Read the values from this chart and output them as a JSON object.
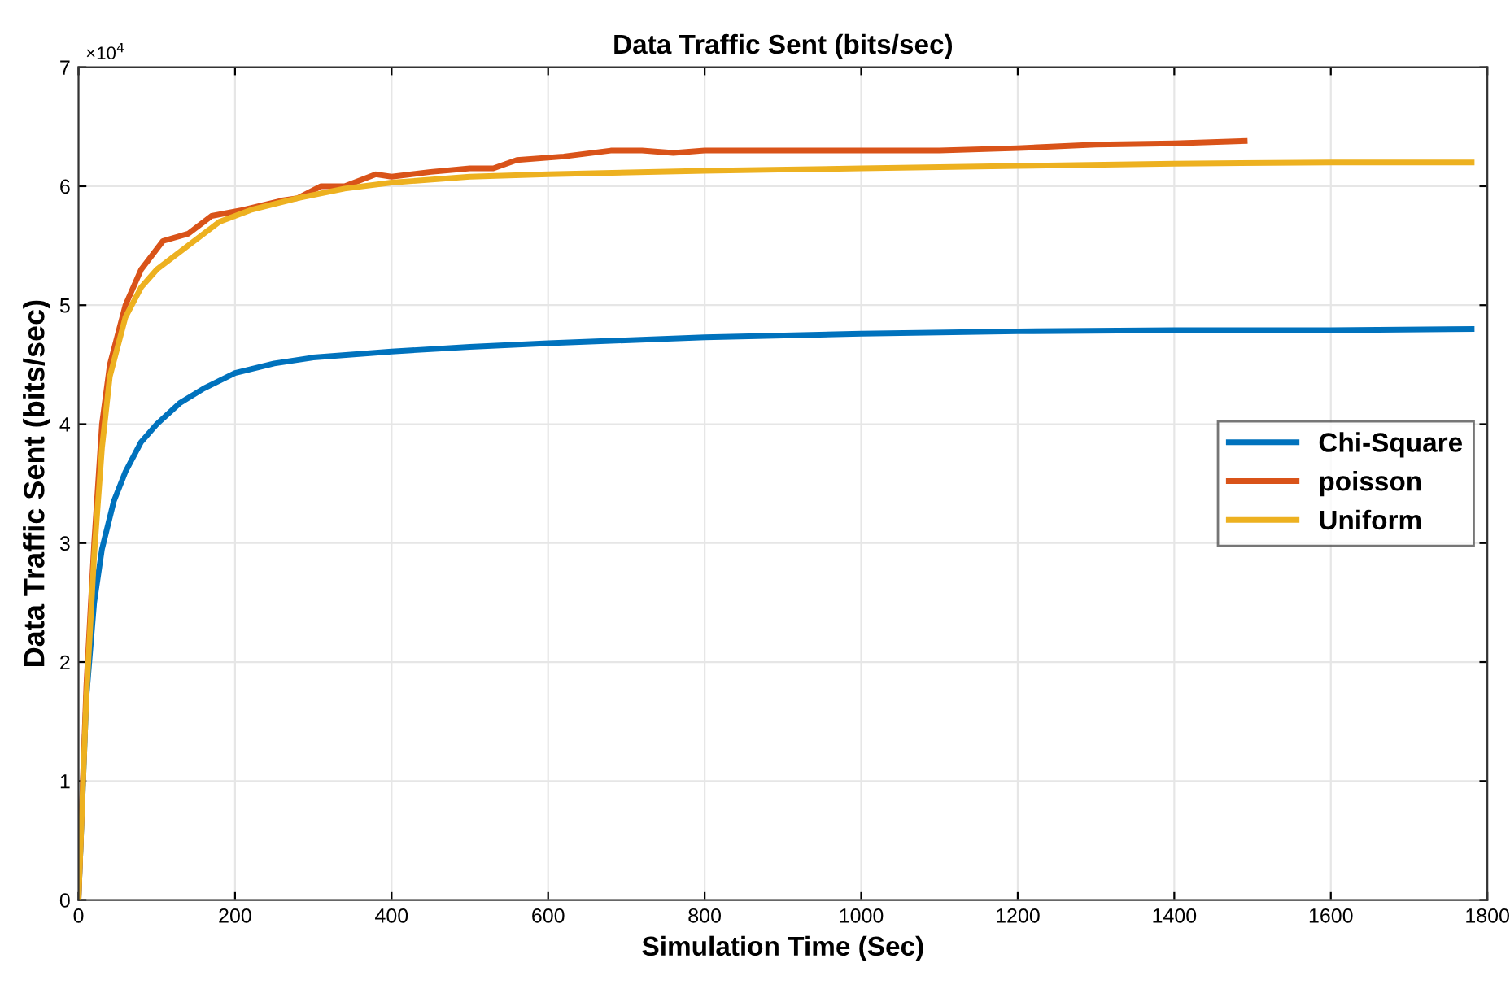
{
  "chart_data": {
    "type": "line",
    "title": "Data Traffic Sent (bits/sec)",
    "xlabel": "Simulation Time (Sec)",
    "ylabel": "Data Traffic Sent (bits/sec)",
    "annotations": [
      "×10$^{4}$"
    ],
    "xlim": [
      0,
      1800
    ],
    "xticks": [
      0,
      200,
      400,
      600,
      800,
      1000,
      1200,
      1400,
      1600,
      1800
    ],
    "ylim": [
      0,
      7
    ],
    "yticks": [
      0,
      1,
      2,
      3,
      4,
      5,
      6,
      7
    ],
    "grid": true,
    "legend": "right",
    "line_style": "solid",
    "series": [
      {
        "name": "Chi-Square",
        "color": "#0072bd",
        "x": [
          0,
          10,
          20,
          30,
          45,
          60,
          80,
          100,
          130,
          160,
          200,
          250,
          300,
          400,
          500,
          600,
          800,
          1000,
          1200,
          1400,
          1600,
          1780
        ],
        "values": [
          0,
          1.7,
          2.5,
          2.95,
          3.35,
          3.6,
          3.85,
          4.0,
          4.18,
          4.3,
          4.43,
          4.51,
          4.56,
          4.61,
          4.65,
          4.68,
          4.73,
          4.76,
          4.78,
          4.79,
          4.79,
          4.8
        ]
      },
      {
        "name": "poisson",
        "color": "#d95319",
        "x": [
          0,
          10,
          20,
          30,
          40,
          60,
          80,
          108,
          140,
          170,
          210,
          260,
          280,
          310,
          340,
          380,
          400,
          450,
          500,
          530,
          560,
          620,
          680,
          720,
          760,
          800,
          900,
          1000,
          1100,
          1200,
          1300,
          1400,
          1490
        ],
        "values": [
          0,
          1.8,
          3.0,
          4.0,
          4.5,
          5.0,
          5.3,
          5.54,
          5.6,
          5.75,
          5.8,
          5.88,
          5.9,
          6.0,
          6.0,
          6.1,
          6.08,
          6.12,
          6.15,
          6.15,
          6.22,
          6.25,
          6.3,
          6.3,
          6.28,
          6.3,
          6.3,
          6.3,
          6.3,
          6.32,
          6.35,
          6.36,
          6.38
        ]
      },
      {
        "name": "Uniform",
        "color": "#edb120",
        "x": [
          0,
          10,
          20,
          30,
          40,
          60,
          80,
          100,
          140,
          180,
          220,
          280,
          340,
          400,
          500,
          600,
          800,
          1000,
          1200,
          1400,
          1600,
          1780
        ],
        "values": [
          0,
          1.7,
          2.9,
          3.8,
          4.4,
          4.9,
          5.15,
          5.3,
          5.5,
          5.7,
          5.8,
          5.9,
          5.98,
          6.03,
          6.08,
          6.1,
          6.13,
          6.15,
          6.17,
          6.19,
          6.2,
          6.2
        ]
      }
    ]
  }
}
